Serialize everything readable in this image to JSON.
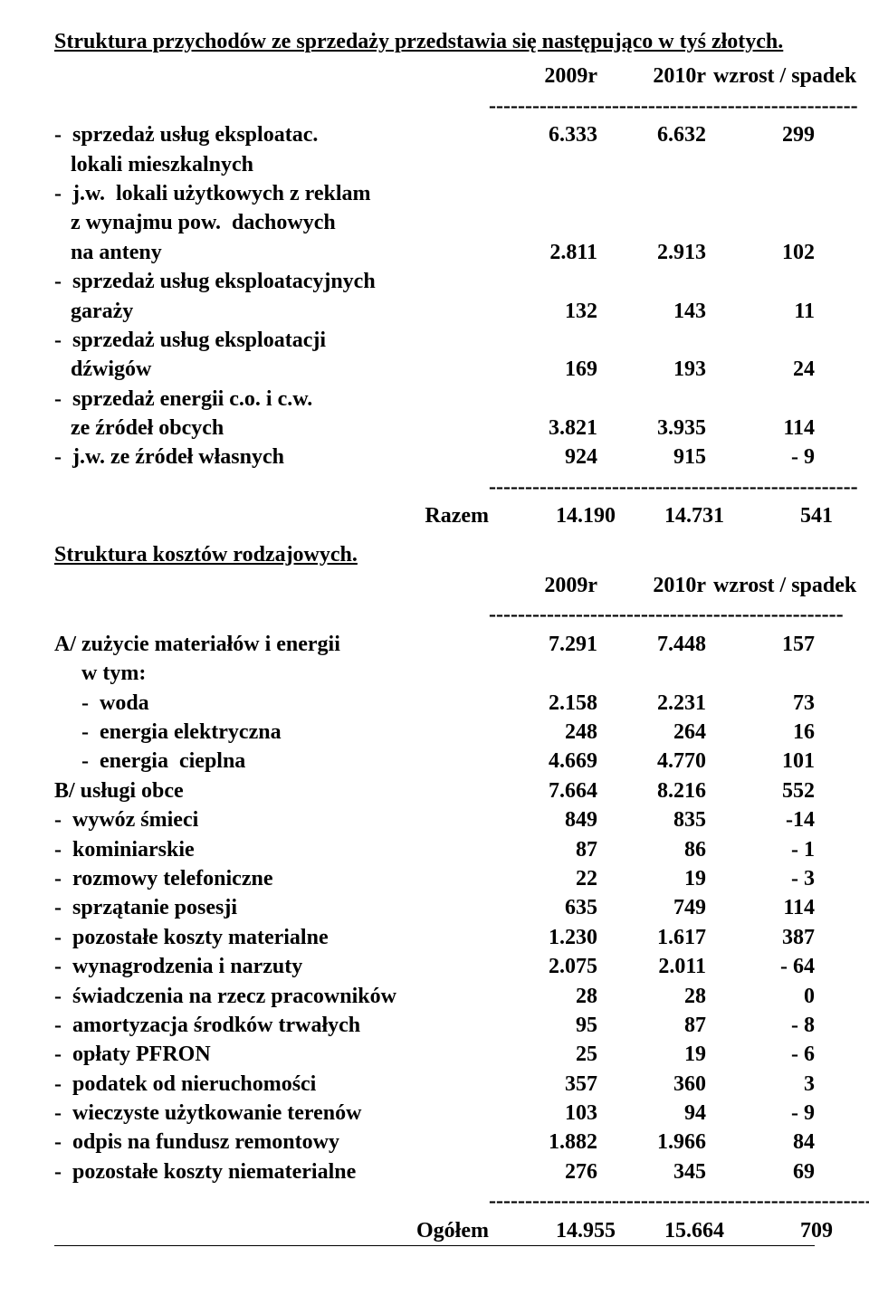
{
  "section1": {
    "title": "Struktura  przychodów ze  sprzedaży przedstawia  się  następująco w  tyś złotych.",
    "header": {
      "y1": "2009r",
      "y2": "2010r",
      "delta": "wzrost / spadek"
    },
    "divider1": "---------------------------------------------------",
    "rows": [
      {
        "label": "-  sprzedaż usług eksploatac.",
        "a": "6.333",
        "b": "6.632",
        "c": "299"
      },
      {
        "label": "   lokali mieszkalnych",
        "a": "",
        "b": "",
        "c": ""
      },
      {
        "label": "-  j.w.  lokali użytkowych z reklam",
        "a": "",
        "b": "",
        "c": ""
      },
      {
        "label": "   z wynajmu pow.  dachowych",
        "a": "",
        "b": "",
        "c": ""
      },
      {
        "label": "   na anteny",
        "a": "2.811",
        "b": "2.913",
        "c": "102"
      },
      {
        "label": "-  sprzedaż usług eksploatacyjnych",
        "a": "",
        "b": "",
        "c": ""
      },
      {
        "label": "   garaży",
        "a": "132",
        "b": "143",
        "c": "11"
      },
      {
        "label": "-  sprzedaż usług eksploatacji",
        "a": "",
        "b": "",
        "c": ""
      },
      {
        "label": "   dźwigów",
        "a": "169",
        "b": "193",
        "c": "24"
      },
      {
        "label": "-  sprzedaż energii c.o. i c.w.",
        "a": "",
        "b": "",
        "c": ""
      },
      {
        "label": "   ze źródeł obcych",
        "a": "3.821",
        "b": "3.935",
        "c": "114"
      },
      {
        "label": "-  j.w. ze źródeł własnych",
        "a": "924",
        "b": "915",
        "c": "- 9"
      }
    ],
    "divider2": "---------------------------------------------------",
    "total": {
      "label": "Razem",
      "a": "14.190",
      "b": "14.731",
      "c": "541"
    }
  },
  "section2": {
    "title": "Struktura kosztów rodzajowych.",
    "header": {
      "y1": "2009r",
      "y2": "2010r",
      "delta": "wzrost / spadek"
    },
    "divider1": "-------------------------------------------------",
    "rows": [
      {
        "label": "A/ zużycie materiałów i energii",
        "a": "7.291",
        "b": "7.448",
        "c": "157"
      },
      {
        "label": "     w tym:",
        "a": "",
        "b": "",
        "c": ""
      },
      {
        "label": "     -  woda",
        "a": "2.158",
        "b": "2.231",
        "c": "73"
      },
      {
        "label": "     -  energia elektryczna",
        "a": "248",
        "b": "264",
        "c": "16"
      },
      {
        "label": "     -  energia  cieplna",
        "a": "4.669",
        "b": "4.770",
        "c": "101"
      },
      {
        "label": "B/ usługi obce",
        "a": "7.664",
        "b": "8.216",
        "c": "552"
      },
      {
        "label": "-  wywóz śmieci",
        "a": "849",
        "b": "835",
        "c": "-14"
      },
      {
        "label": "-  kominiarskie",
        "a": "87",
        "b": "86",
        "c": "- 1"
      },
      {
        "label": "-  rozmowy telefoniczne",
        "a": "22",
        "b": "19",
        "c": "- 3"
      },
      {
        "label": "-  sprzątanie posesji",
        "a": "635",
        "b": "749",
        "c": "114"
      },
      {
        "label": "-  pozostałe koszty materialne",
        "a": "1.230",
        "b": "1.617",
        "c": "387"
      },
      {
        "label": "-  wynagrodzenia i narzuty",
        "a": "2.075",
        "b": "2.011",
        "c": "- 64"
      },
      {
        "label": "-  świadczenia na rzecz pracowników",
        "a": "28",
        "b": "28",
        "c": "0"
      },
      {
        "label": "-  amortyzacja środków trwałych",
        "a": "95",
        "b": "87",
        "c": "- 8"
      },
      {
        "label": "-  opłaty PFRON",
        "a": "25",
        "b": "19",
        "c": "- 6"
      },
      {
        "label": "-  podatek od nieruchomości",
        "a": "357",
        "b": "360",
        "c": "3"
      },
      {
        "label": "-  wieczyste użytkowanie terenów",
        "a": "103",
        "b": "94",
        "c": "- 9"
      },
      {
        "label": "-  odpis na fundusz remontowy",
        "a": "1.882",
        "b": "1.966",
        "c": "84"
      },
      {
        "label": "-  pozostałe koszty niematerialne",
        "a": "276",
        "b": "345",
        "c": "69"
      }
    ],
    "divider2": "-------------------------------------------------------",
    "total": {
      "label": "Ogółem",
      "a": "14.955",
      "b": "15.664",
      "c": "709"
    }
  }
}
